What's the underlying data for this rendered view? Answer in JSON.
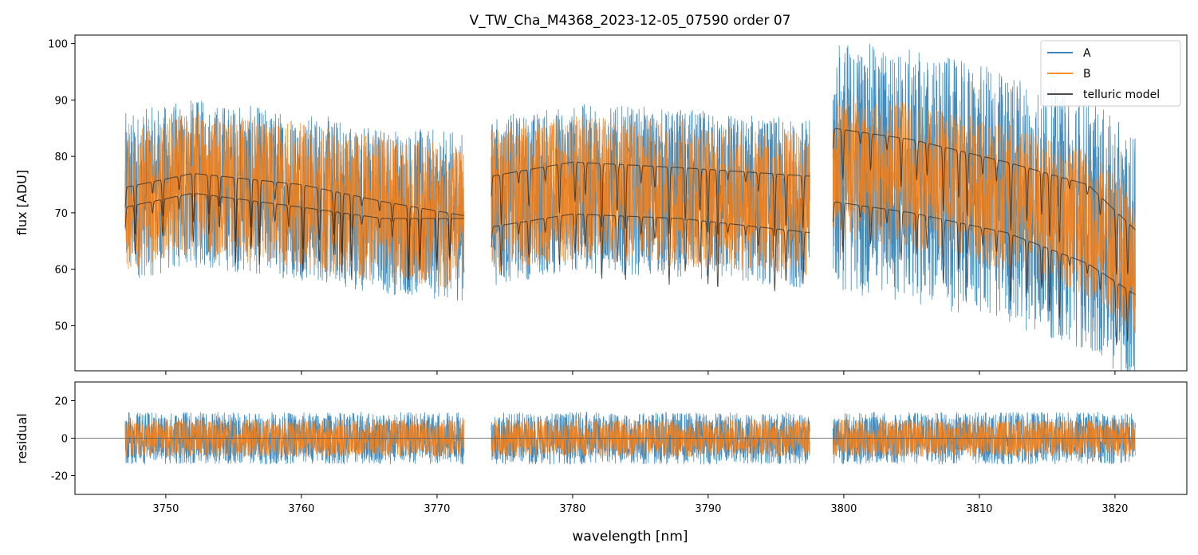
{
  "chart_data": [
    {
      "panel": "flux",
      "type": "line",
      "title": "V_TW_Cha_M4368_2023-12-05_07590  order 07",
      "xlabel": "",
      "ylabel": "flux [ADU]",
      "xlim": [
        3743.3,
        3825.3
      ],
      "ylim": [
        42,
        101.5
      ],
      "yticks": [
        50,
        60,
        70,
        80,
        90,
        100
      ],
      "xticks": [
        3750,
        3760,
        3770,
        3780,
        3790,
        3800,
        3810,
        3820
      ],
      "legend_position": "top-right",
      "segments": [
        {
          "start": 3747.0,
          "end": 3772.0
        },
        {
          "start": 3774.0,
          "end": 3797.5
        },
        {
          "start": 3799.2,
          "end": 3821.5
        }
      ],
      "series": [
        {
          "name": "A",
          "color": "#1f77b4",
          "noise_amplitude": 15
        },
        {
          "name": "B",
          "color": "#ff7f0e",
          "noise_amplitude": 13
        },
        {
          "name": "telluric model",
          "color": "#333333",
          "continuum_upper": [
            [
              3747.0,
              74.5
            ],
            [
              3752.0,
              77.0
            ],
            [
              3760.0,
              75.0
            ],
            [
              3766.0,
              72.0
            ],
            [
              3772.0,
              69.5
            ],
            [
              3774.0,
              76.5
            ],
            [
              3780.0,
              79.0
            ],
            [
              3788.0,
              78.0
            ],
            [
              3797.5,
              76.5
            ],
            [
              3799.2,
              85.0
            ],
            [
              3805.0,
              83.0
            ],
            [
              3812.0,
              79.0
            ],
            [
              3818.0,
              75.0
            ],
            [
              3821.5,
              67.0
            ]
          ],
          "continuum_lower": [
            [
              3747.0,
              71.0
            ],
            [
              3752.0,
              73.5
            ],
            [
              3760.0,
              71.0
            ],
            [
              3766.0,
              69.0
            ],
            [
              3772.0,
              69.0
            ],
            [
              3774.0,
              67.5
            ],
            [
              3780.0,
              69.8
            ],
            [
              3788.0,
              69.0
            ],
            [
              3797.5,
              66.5
            ],
            [
              3799.2,
              72.0
            ],
            [
              3805.0,
              70.0
            ],
            [
              3812.0,
              66.5
            ],
            [
              3818.0,
              61.0
            ],
            [
              3821.5,
              55.5
            ]
          ]
        }
      ]
    },
    {
      "panel": "residual",
      "type": "line",
      "xlabel": "wavelength [nm]",
      "ylabel": "residual",
      "xlim": [
        3743.3,
        3825.3
      ],
      "ylim": [
        -30,
        30
      ],
      "yticks": [
        -20,
        0,
        20
      ],
      "xticks": [
        3750,
        3760,
        3770,
        3780,
        3790,
        3800,
        3810,
        3820
      ],
      "zero_line": 0,
      "series": [
        {
          "name": "A",
          "color": "#1f77b4",
          "noise_amplitude": 14
        },
        {
          "name": "B",
          "color": "#ff7f0e",
          "noise_amplitude": 10
        }
      ]
    }
  ]
}
